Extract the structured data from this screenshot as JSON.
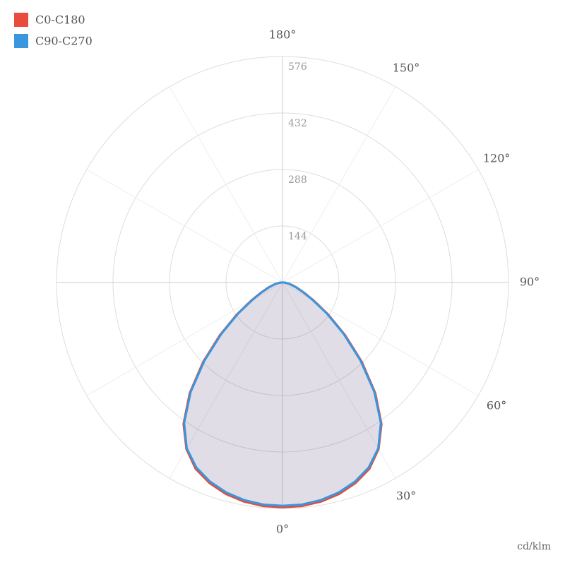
{
  "chart_data": {
    "type": "polar",
    "unit": "cd/klm",
    "theta": [
      0,
      5,
      10,
      15,
      20,
      25,
      30,
      35,
      40,
      45,
      50,
      55,
      60,
      65,
      70,
      75,
      80,
      85,
      90,
      95,
      100,
      110,
      120,
      130,
      140,
      150,
      160,
      170,
      180
    ],
    "series": [
      {
        "name": "C0-C180",
        "color": "#e74c3c",
        "values": [
          573,
          572,
          567,
          558,
          544,
          524,
          490,
          440,
          368,
          286,
          208,
          142,
          92,
          60,
          40,
          26,
          16,
          9,
          4,
          1,
          0,
          0,
          0,
          0,
          0,
          0,
          0,
          0,
          0
        ]
      },
      {
        "name": "C90-C270",
        "color": "#3a96dd",
        "values": [
          569,
          568,
          563,
          554,
          540,
          520,
          488,
          437,
          364,
          281,
          203,
          138,
          88,
          57,
          37,
          24,
          15,
          8,
          3,
          1,
          0,
          0,
          0,
          0,
          0,
          0,
          0,
          0,
          0
        ]
      }
    ],
    "area_color": "rgba(120, 100, 140, 0.22)",
    "rlim": [
      0,
      576
    ],
    "rticks": [
      144,
      288,
      432,
      576
    ],
    "angle_ticks": [
      {
        "value": 0,
        "label": "0°"
      },
      {
        "value": 30,
        "label": "30°"
      },
      {
        "value": 60,
        "label": "60°"
      },
      {
        "value": 90,
        "label": "90°"
      },
      {
        "value": 120,
        "label": "120°"
      },
      {
        "value": 150,
        "label": "150°"
      },
      {
        "value": 180,
        "label": "180°"
      }
    ],
    "grid": true,
    "legend": "top-left"
  }
}
